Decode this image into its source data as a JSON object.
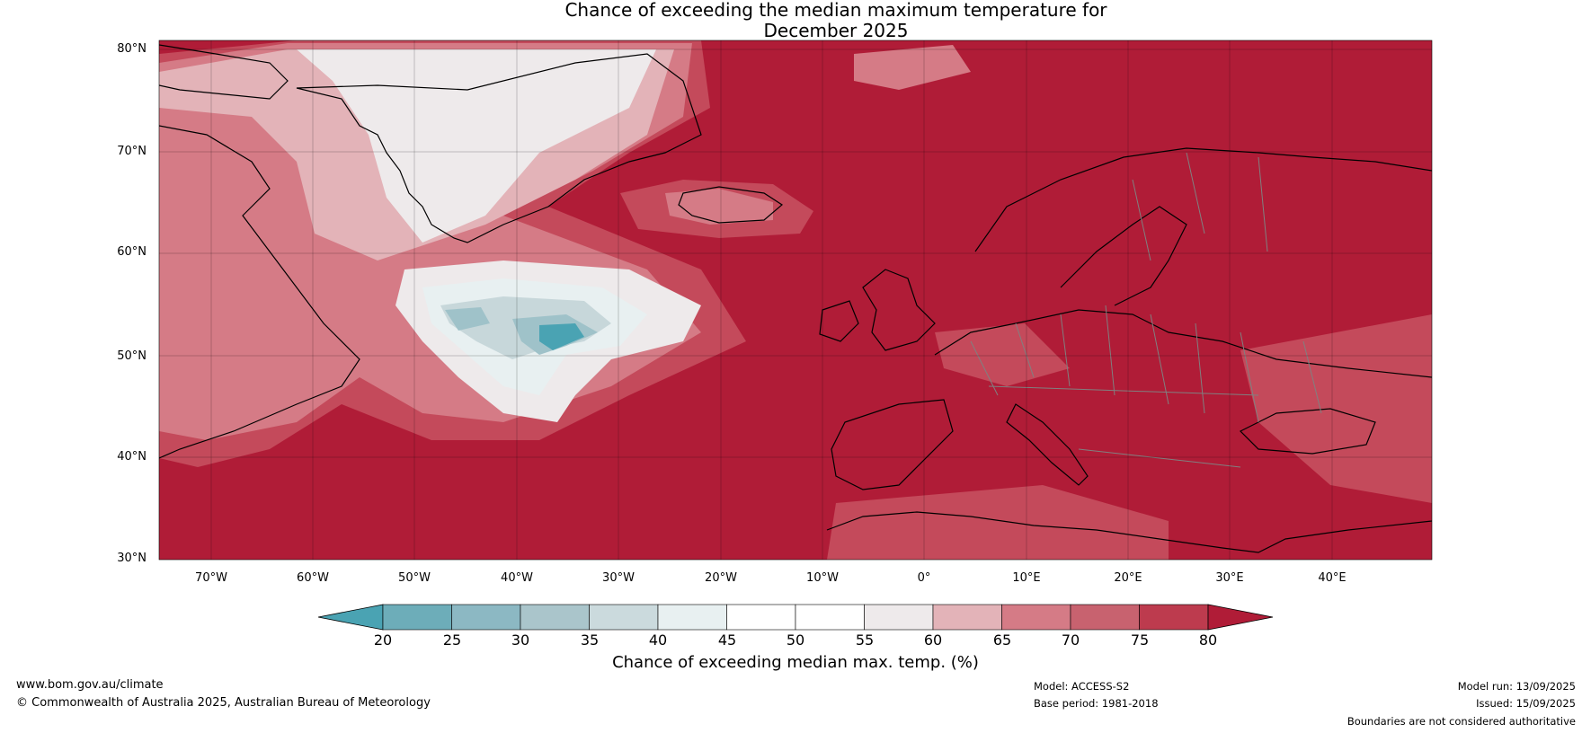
{
  "title": {
    "line1": "Chance of exceeding the median maximum temperature for",
    "line2": "December 2025"
  },
  "map": {
    "latitude_labels": [
      "80°N",
      "70°N",
      "60°N",
      "50°N",
      "40°N",
      "30°N"
    ],
    "longitude_labels": [
      "70°W",
      "60°W",
      "50°W",
      "40°W",
      "30°W",
      "20°W",
      "10°W",
      "0°",
      "10°E",
      "20°E",
      "30°E",
      "40°E"
    ],
    "colors": {
      "background": "#b01c37",
      "ocean_high": "#b01c37",
      "band_75": "#c44a5b",
      "band_70": "#d57b86",
      "band_65": "#e3b3b8",
      "band_55": "#eeeaeb",
      "band_45": "#e8f0f1",
      "band_40": "#c7d7da",
      "band_30": "#9fc2c9",
      "band_20": "#4aa3b3",
      "coastline": "#000000",
      "borders": "#808080"
    }
  },
  "colorbar": {
    "ticks": [
      "20",
      "25",
      "30",
      "35",
      "40",
      "45",
      "50",
      "55",
      "60",
      "65",
      "70",
      "75",
      "80"
    ],
    "colors": [
      "#4aa3b3",
      "#6dadb9",
      "#8cb8c3",
      "#aac5cb",
      "#cbdadd",
      "#e8f0f1",
      "#ffffff",
      "#ffffff",
      "#eeeaeb",
      "#e3b3b8",
      "#d57b86",
      "#c8626f",
      "#bd3b4e",
      "#b01c37"
    ],
    "label": "Chance of exceeding median max. temp. (%)"
  },
  "footer": {
    "website": "www.bom.gov.au/climate",
    "copyright": "© Commonwealth of Australia 2025, Australian Bureau of Meteorology",
    "model": "Model: ACCESS-S2",
    "base_period": "Base period: 1981-2018",
    "model_run": "Model run: 13/09/2025",
    "issued": "Issued: 15/09/2025",
    "disclaimer": "Boundaries are not considered authoritative"
  }
}
